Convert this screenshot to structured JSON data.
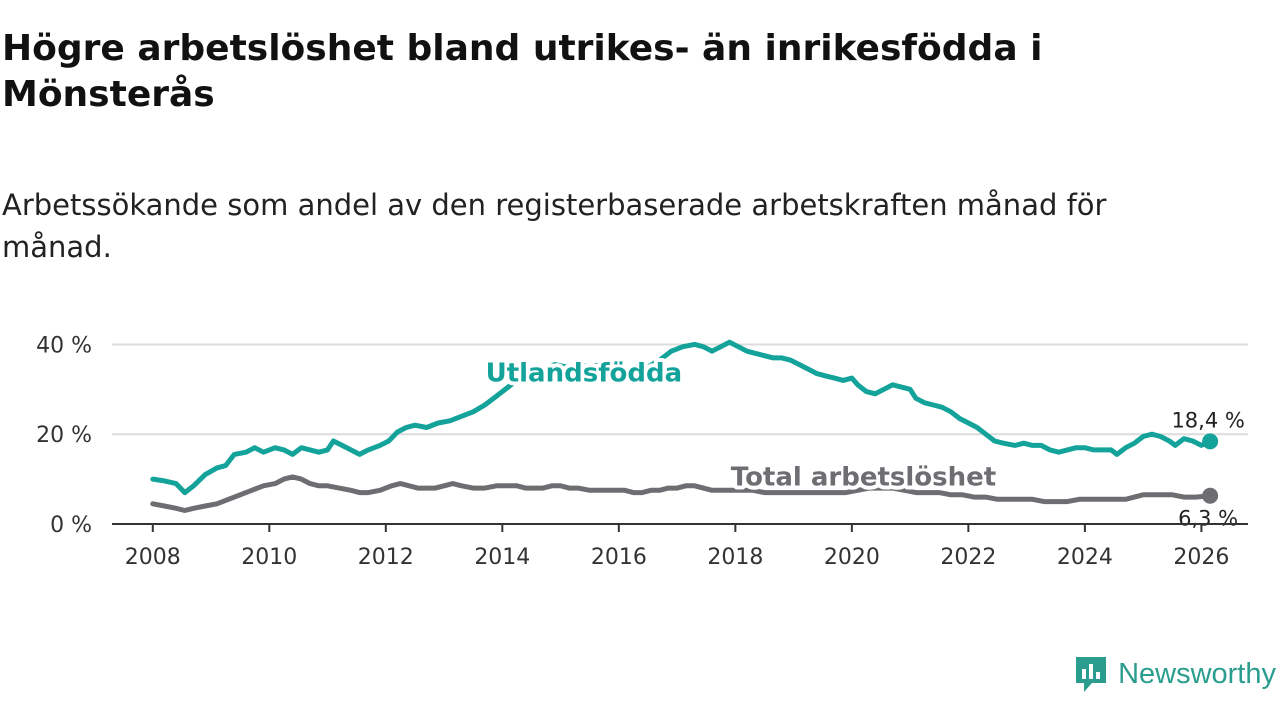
{
  "header": {
    "title": "Högre arbetslöshet bland utrikes- än inrikesfödda i Mönsterås",
    "subtitle": "Arbetssökande som andel av den registerbaserade arbetskraften månad för månad."
  },
  "chart_data": {
    "type": "line",
    "x_range": [
      2007.3,
      2026.8
    ],
    "ylim": [
      0,
      45
    ],
    "x_ticks": [
      2008,
      2010,
      2012,
      2014,
      2016,
      2018,
      2020,
      2022,
      2024,
      2026
    ],
    "x_tick_labels": [
      "2008",
      "2010",
      "2012",
      "2014",
      "2016",
      "2018",
      "2020",
      "2022",
      "2024",
      "2026"
    ],
    "y_ticks": [
      0,
      20,
      40
    ],
    "y_tick_labels": [
      "0 %",
      "20 %",
      "40 %"
    ],
    "grid": true,
    "xlabel": "",
    "ylabel": "",
    "series": [
      {
        "name": "Utlandsfödda",
        "color": "#14a39a",
        "end_label": "18,4 %",
        "points": [
          [
            2008.0,
            10.0
          ],
          [
            2008.2,
            9.6
          ],
          [
            2008.4,
            9.0
          ],
          [
            2008.55,
            7.0
          ],
          [
            2008.7,
            8.5
          ],
          [
            2008.9,
            11.0
          ],
          [
            2009.1,
            12.5
          ],
          [
            2009.25,
            13.0
          ],
          [
            2009.4,
            15.5
          ],
          [
            2009.6,
            16.0
          ],
          [
            2009.75,
            17.0
          ],
          [
            2009.9,
            16.0
          ],
          [
            2010.1,
            17.0
          ],
          [
            2010.25,
            16.5
          ],
          [
            2010.4,
            15.5
          ],
          [
            2010.55,
            17.0
          ],
          [
            2010.7,
            16.5
          ],
          [
            2010.85,
            16.0
          ],
          [
            2011.0,
            16.5
          ],
          [
            2011.1,
            18.5
          ],
          [
            2011.25,
            17.5
          ],
          [
            2011.4,
            16.5
          ],
          [
            2011.55,
            15.5
          ],
          [
            2011.7,
            16.5
          ],
          [
            2011.9,
            17.5
          ],
          [
            2012.05,
            18.5
          ],
          [
            2012.2,
            20.5
          ],
          [
            2012.35,
            21.5
          ],
          [
            2012.5,
            22.0
          ],
          [
            2012.7,
            21.5
          ],
          [
            2012.9,
            22.5
          ],
          [
            2013.1,
            23.0
          ],
          [
            2013.3,
            24.0
          ],
          [
            2013.5,
            25.0
          ],
          [
            2013.7,
            26.5
          ],
          [
            2013.9,
            28.5
          ],
          [
            2014.1,
            30.5
          ],
          [
            2014.3,
            32.5
          ],
          [
            2014.5,
            33.5
          ],
          [
            2014.7,
            34.5
          ],
          [
            2014.9,
            35.5
          ],
          [
            2015.1,
            35.0
          ],
          [
            2015.3,
            35.5
          ],
          [
            2015.5,
            35.0
          ],
          [
            2015.7,
            35.5
          ],
          [
            2015.9,
            35.0
          ],
          [
            2016.1,
            34.0
          ],
          [
            2016.3,
            33.5
          ],
          [
            2016.5,
            35.0
          ],
          [
            2016.7,
            36.5
          ],
          [
            2016.9,
            38.5
          ],
          [
            2017.1,
            39.5
          ],
          [
            2017.3,
            40.0
          ],
          [
            2017.45,
            39.5
          ],
          [
            2017.6,
            38.5
          ],
          [
            2017.75,
            39.5
          ],
          [
            2017.9,
            40.5
          ],
          [
            2018.05,
            39.5
          ],
          [
            2018.2,
            38.5
          ],
          [
            2018.35,
            38.0
          ],
          [
            2018.5,
            37.5
          ],
          [
            2018.65,
            37.0
          ],
          [
            2018.8,
            37.0
          ],
          [
            2018.95,
            36.5
          ],
          [
            2019.1,
            35.5
          ],
          [
            2019.25,
            34.5
          ],
          [
            2019.4,
            33.5
          ],
          [
            2019.55,
            33.0
          ],
          [
            2019.7,
            32.5
          ],
          [
            2019.85,
            32.0
          ],
          [
            2020.0,
            32.5
          ],
          [
            2020.1,
            31.0
          ],
          [
            2020.25,
            29.5
          ],
          [
            2020.4,
            29.0
          ],
          [
            2020.55,
            30.0
          ],
          [
            2020.7,
            31.0
          ],
          [
            2020.85,
            30.5
          ],
          [
            2021.0,
            30.0
          ],
          [
            2021.1,
            28.0
          ],
          [
            2021.25,
            27.0
          ],
          [
            2021.4,
            26.5
          ],
          [
            2021.55,
            26.0
          ],
          [
            2021.7,
            25.0
          ],
          [
            2021.85,
            23.5
          ],
          [
            2022.0,
            22.5
          ],
          [
            2022.15,
            21.5
          ],
          [
            2022.3,
            20.0
          ],
          [
            2022.45,
            18.5
          ],
          [
            2022.6,
            18.0
          ],
          [
            2022.8,
            17.5
          ],
          [
            2022.95,
            18.0
          ],
          [
            2023.1,
            17.5
          ],
          [
            2023.25,
            17.5
          ],
          [
            2023.4,
            16.5
          ],
          [
            2023.55,
            16.0
          ],
          [
            2023.7,
            16.5
          ],
          [
            2023.85,
            17.0
          ],
          [
            2024.0,
            17.0
          ],
          [
            2024.15,
            16.5
          ],
          [
            2024.3,
            16.5
          ],
          [
            2024.45,
            16.5
          ],
          [
            2024.55,
            15.5
          ],
          [
            2024.7,
            17.0
          ],
          [
            2024.85,
            18.0
          ],
          [
            2025.0,
            19.5
          ],
          [
            2025.15,
            20.0
          ],
          [
            2025.3,
            19.5
          ],
          [
            2025.45,
            18.5
          ],
          [
            2025.55,
            17.5
          ],
          [
            2025.7,
            19.0
          ],
          [
            2025.85,
            18.5
          ],
          [
            2026.0,
            17.5
          ],
          [
            2026.15,
            18.4
          ]
        ]
      },
      {
        "name": "Total arbetslöshet",
        "color": "#6e6d72",
        "end_label": "6,3 %",
        "points": [
          [
            2008.0,
            4.5
          ],
          [
            2008.2,
            4.0
          ],
          [
            2008.4,
            3.5
          ],
          [
            2008.55,
            3.0
          ],
          [
            2008.7,
            3.5
          ],
          [
            2008.9,
            4.0
          ],
          [
            2009.1,
            4.5
          ],
          [
            2009.3,
            5.5
          ],
          [
            2009.5,
            6.5
          ],
          [
            2009.7,
            7.5
          ],
          [
            2009.9,
            8.5
          ],
          [
            2010.1,
            9.0
          ],
          [
            2010.25,
            10.0
          ],
          [
            2010.4,
            10.5
          ],
          [
            2010.55,
            10.0
          ],
          [
            2010.7,
            9.0
          ],
          [
            2010.85,
            8.5
          ],
          [
            2011.0,
            8.5
          ],
          [
            2011.2,
            8.0
          ],
          [
            2011.4,
            7.5
          ],
          [
            2011.55,
            7.0
          ],
          [
            2011.7,
            7.0
          ],
          [
            2011.9,
            7.5
          ],
          [
            2012.1,
            8.5
          ],
          [
            2012.25,
            9.0
          ],
          [
            2012.4,
            8.5
          ],
          [
            2012.55,
            8.0
          ],
          [
            2012.7,
            8.0
          ],
          [
            2012.85,
            8.0
          ],
          [
            2013.0,
            8.5
          ],
          [
            2013.15,
            9.0
          ],
          [
            2013.3,
            8.5
          ],
          [
            2013.5,
            8.0
          ],
          [
            2013.7,
            8.0
          ],
          [
            2013.9,
            8.5
          ],
          [
            2014.1,
            8.5
          ],
          [
            2014.25,
            8.5
          ],
          [
            2014.4,
            8.0
          ],
          [
            2014.55,
            8.0
          ],
          [
            2014.7,
            8.0
          ],
          [
            2014.85,
            8.5
          ],
          [
            2015.0,
            8.5
          ],
          [
            2015.15,
            8.0
          ],
          [
            2015.3,
            8.0
          ],
          [
            2015.5,
            7.5
          ],
          [
            2015.7,
            7.5
          ],
          [
            2015.9,
            7.5
          ],
          [
            2016.1,
            7.5
          ],
          [
            2016.25,
            7.0
          ],
          [
            2016.4,
            7.0
          ],
          [
            2016.55,
            7.5
          ],
          [
            2016.7,
            7.5
          ],
          [
            2016.85,
            8.0
          ],
          [
            2017.0,
            8.0
          ],
          [
            2017.15,
            8.5
          ],
          [
            2017.3,
            8.5
          ],
          [
            2017.45,
            8.0
          ],
          [
            2017.6,
            7.5
          ],
          [
            2017.75,
            7.5
          ],
          [
            2017.9,
            7.5
          ],
          [
            2018.1,
            7.5
          ],
          [
            2018.3,
            7.5
          ],
          [
            2018.5,
            7.0
          ],
          [
            2018.7,
            7.0
          ],
          [
            2018.9,
            7.0
          ],
          [
            2019.1,
            7.0
          ],
          [
            2019.3,
            7.0
          ],
          [
            2019.5,
            7.0
          ],
          [
            2019.7,
            7.0
          ],
          [
            2019.9,
            7.0
          ],
          [
            2020.1,
            7.5
          ],
          [
            2020.3,
            8.0
          ],
          [
            2020.5,
            8.0
          ],
          [
            2020.7,
            8.0
          ],
          [
            2020.9,
            7.5
          ],
          [
            2021.1,
            7.0
          ],
          [
            2021.3,
            7.0
          ],
          [
            2021.5,
            7.0
          ],
          [
            2021.7,
            6.5
          ],
          [
            2021.9,
            6.5
          ],
          [
            2022.1,
            6.0
          ],
          [
            2022.3,
            6.0
          ],
          [
            2022.5,
            5.5
          ],
          [
            2022.7,
            5.5
          ],
          [
            2022.9,
            5.5
          ],
          [
            2023.1,
            5.5
          ],
          [
            2023.3,
            5.0
          ],
          [
            2023.5,
            5.0
          ],
          [
            2023.7,
            5.0
          ],
          [
            2023.9,
            5.5
          ],
          [
            2024.1,
            5.5
          ],
          [
            2024.3,
            5.5
          ],
          [
            2024.5,
            5.5
          ],
          [
            2024.7,
            5.5
          ],
          [
            2024.85,
            6.0
          ],
          [
            2025.0,
            6.5
          ],
          [
            2025.15,
            6.5
          ],
          [
            2025.3,
            6.5
          ],
          [
            2025.5,
            6.5
          ],
          [
            2025.7,
            6.0
          ],
          [
            2025.9,
            6.0
          ],
          [
            2026.15,
            6.3
          ]
        ]
      }
    ],
    "annotations": [
      {
        "text": "Utlandsfödda",
        "series": 0,
        "anchor": [
          2015.4,
          31.8
        ],
        "color": "#14a39a"
      },
      {
        "text": "Total arbetslöshet",
        "series": 1,
        "anchor": [
          2020.2,
          8.6
        ],
        "color": "#6e6d72"
      }
    ]
  },
  "brand": {
    "name": "Newsworthy",
    "color": "#2a9d8f",
    "icon": "newsworthy-logo-icon"
  }
}
